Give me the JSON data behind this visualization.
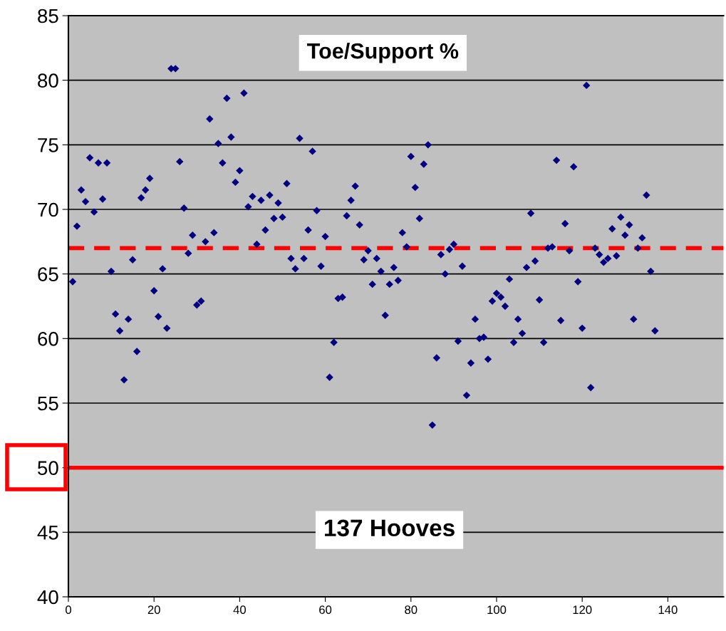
{
  "chart_data": {
    "type": "scatter",
    "annotations": [
      "Toe/Support %",
      "137 Hooves"
    ],
    "x": [
      1,
      2,
      3,
      4,
      5,
      6,
      7,
      8,
      9,
      10,
      11,
      12,
      13,
      14,
      15,
      16,
      17,
      18,
      19,
      20,
      21,
      22,
      23,
      24,
      25,
      26,
      27,
      28,
      29,
      30,
      31,
      32,
      33,
      34,
      35,
      36,
      37,
      38,
      39,
      40,
      41,
      42,
      43,
      44,
      45,
      46,
      47,
      48,
      49,
      50,
      51,
      52,
      53,
      54,
      55,
      56,
      57,
      58,
      59,
      60,
      61,
      62,
      63,
      64,
      65,
      66,
      67,
      68,
      69,
      70,
      71,
      72,
      73,
      74,
      75,
      76,
      77,
      78,
      79,
      80,
      81,
      82,
      83,
      84,
      85,
      86,
      87,
      88,
      89,
      90,
      91,
      92,
      93,
      94,
      95,
      96,
      97,
      98,
      99,
      100,
      101,
      102,
      103,
      104,
      105,
      106,
      107,
      108,
      109,
      110,
      111,
      112,
      113,
      114,
      115,
      116,
      117,
      118,
      119,
      120,
      121,
      122,
      123,
      124,
      125,
      126,
      127,
      128,
      129,
      130,
      131,
      132,
      133,
      134,
      135,
      136,
      137
    ],
    "series": [
      {
        "color": "#000080",
        "values": [
          64.4,
          68.7,
          71.5,
          70.6,
          74.0,
          69.8,
          73.6,
          70.8,
          73.6,
          65.2,
          61.9,
          60.6,
          56.8,
          61.5,
          66.1,
          59.0,
          70.9,
          71.5,
          72.4,
          63.7,
          61.7,
          65.4,
          60.8,
          80.9,
          80.9,
          73.7,
          70.1,
          66.6,
          68.0,
          62.6,
          62.9,
          67.5,
          77.0,
          68.2,
          75.1,
          73.6,
          78.6,
          75.6,
          72.1,
          73.0,
          79.0,
          70.2,
          71.0,
          67.3,
          70.7,
          68.4,
          71.1,
          69.3,
          70.5,
          69.4,
          72.0,
          66.2,
          65.4,
          75.5,
          66.2,
          68.4,
          74.5,
          69.9,
          65.6,
          67.9,
          57.0,
          59.7,
          63.1,
          63.2,
          69.5,
          70.7,
          71.8,
          68.8,
          66.1,
          66.8,
          64.2,
          66.2,
          65.2,
          61.8,
          64.2,
          65.5,
          64.5,
          68.2,
          67.1,
          74.1,
          71.7,
          69.3,
          73.5,
          75.0,
          53.3,
          58.5,
          66.5,
          65.0,
          66.9,
          67.3,
          59.8,
          65.6,
          55.6,
          58.1,
          61.5,
          60.0,
          60.1,
          58.4,
          62.9,
          63.5,
          63.2,
          62.5,
          64.6,
          59.7,
          61.5,
          60.4,
          65.5,
          69.7,
          66.0,
          63.0,
          59.7,
          67.0,
          67.1,
          73.8,
          61.4,
          68.9,
          66.8,
          73.3,
          64.4,
          60.8,
          79.6,
          56.2,
          67.0,
          66.5,
          65.9,
          66.2,
          68.5,
          66.4,
          69.4,
          68.0,
          68.8,
          61.5,
          67.0,
          67.8,
          71.1,
          65.2,
          60.6
        ]
      }
    ],
    "marker": "diamond",
    "xlim": [
      0,
      153
    ],
    "xticks": [
      0,
      20,
      40,
      60,
      80,
      100,
      120,
      140
    ],
    "ylim": [
      40,
      85
    ],
    "yticks": [
      40,
      45,
      50,
      55,
      60,
      65,
      70,
      75,
      80,
      85
    ],
    "grid": "y",
    "ref_lines": [
      {
        "axis": "y",
        "value": 67,
        "color": "#ff0000",
        "line_style": "dashed"
      },
      {
        "axis": "y",
        "value": 50,
        "color": "#ff0000",
        "line_style": "solid"
      }
    ]
  }
}
